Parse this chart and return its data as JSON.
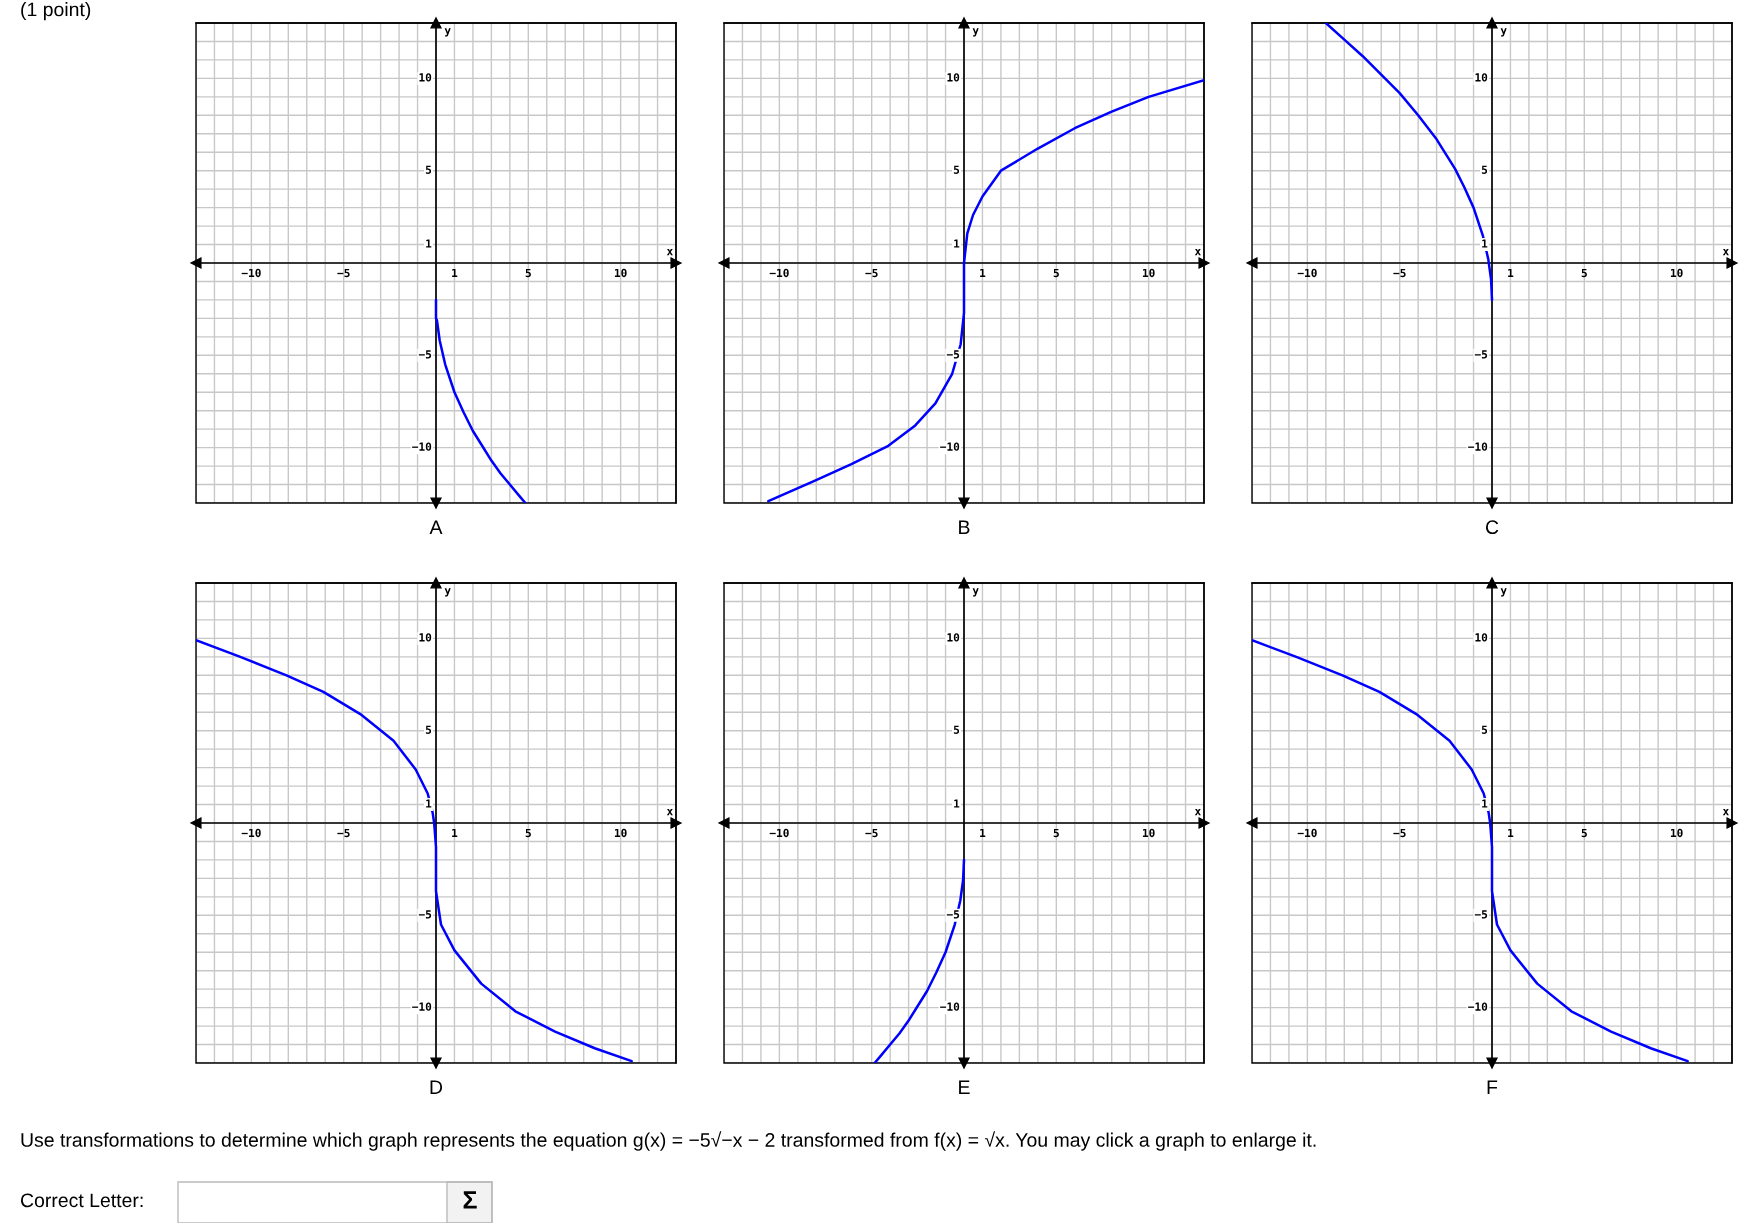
{
  "chart_data": [
    {
      "type": "line",
      "title": "A",
      "xlabel": "x",
      "ylabel": "y",
      "xlim": [
        -13,
        13
      ],
      "ylim": [
        -13,
        13
      ],
      "xticks": [
        -10,
        -5,
        1,
        5,
        10
      ],
      "yticks": [
        -10,
        -5,
        1,
        5,
        10
      ],
      "grid": true,
      "annotations": [
        "(1 point)"
      ],
      "series": [
        {
          "color": "#0000ff",
          "x": [
            0,
            0,
            0.05,
            0.2,
            0.5,
            1,
            1.5,
            2,
            2.5,
            3,
            3.5,
            4,
            4.5,
            4.84
          ],
          "values": [
            -2,
            -3,
            -3.1,
            -4.2,
            -5.5,
            -7,
            -8.1,
            -9.1,
            -9.9,
            -10.7,
            -11.4,
            -12,
            -12.6,
            -13
          ]
        }
      ]
    },
    {
      "type": "line",
      "title": "B",
      "xlabel": "x",
      "ylabel": "y",
      "xlim": [
        -13,
        13
      ],
      "ylim": [
        -13,
        13
      ],
      "xticks": [
        -10,
        -5,
        1,
        5,
        10
      ],
      "yticks": [
        -10,
        -5,
        1,
        5,
        10
      ],
      "grid": true,
      "series": [
        {
          "color": "#0000ff",
          "x": [
            -10.6,
            -8.1,
            -6.1,
            -4.1,
            -2.64,
            -1.55,
            -0.64,
            -0.18,
            0,
            0,
            0.18,
            0.49,
            1,
            2,
            4,
            6,
            8,
            10,
            13
          ],
          "values": [
            -12.9,
            -11.8,
            -10.9,
            -9.9,
            -8.8,
            -7.6,
            -6,
            -4.4,
            -2.7,
            0,
            1.6,
            2.6,
            3.6,
            5,
            6.2,
            7.3,
            8.2,
            9,
            9.9
          ]
        }
      ]
    },
    {
      "type": "line",
      "title": "C",
      "xlabel": "x",
      "ylabel": "y",
      "xlim": [
        -13,
        13
      ],
      "ylim": [
        -13,
        13
      ],
      "xticks": [
        -10,
        -5,
        1,
        5,
        10
      ],
      "yticks": [
        -10,
        -5,
        1,
        5,
        10
      ],
      "grid": true,
      "series": [
        {
          "color": "#0000ff",
          "x": [
            -9,
            -8,
            -7,
            -6,
            -5,
            -4,
            -3,
            -2,
            -1.5,
            -1,
            -0.5,
            -0.2,
            -0.05,
            0
          ],
          "values": [
            13,
            12.1,
            11.2,
            10.2,
            9.2,
            8,
            6.7,
            5.1,
            4.1,
            3,
            1.5,
            0.2,
            -0.9,
            -2
          ]
        }
      ]
    },
    {
      "type": "line",
      "title": "D",
      "xlabel": "x",
      "ylabel": "y",
      "xlim": [
        -13,
        13
      ],
      "ylim": [
        -13,
        13
      ],
      "xticks": [
        -10,
        -5,
        1,
        5,
        10
      ],
      "yticks": [
        -10,
        -5,
        1,
        5,
        10
      ],
      "grid": true,
      "series": [
        {
          "color": "#0000ff",
          "x": [
            -13,
            -10.6,
            -8.1,
            -6.1,
            -4.1,
            -2.3,
            -1.1,
            -0.45,
            -0.18,
            -0.1,
            0,
            0,
            0.27,
            1,
            2.45,
            4.3,
            6.45,
            8.6,
            10.6
          ],
          "values": [
            9.9,
            9,
            8,
            7.1,
            5.9,
            4.45,
            2.9,
            1.6,
            0.55,
            0,
            -1.3,
            -3.7,
            -5.5,
            -6.9,
            -8.7,
            -10.2,
            -11.3,
            -12.2,
            -12.9
          ]
        }
      ]
    },
    {
      "type": "line",
      "title": "E",
      "xlabel": "x",
      "ylabel": "y",
      "xlim": [
        -13,
        13
      ],
      "ylim": [
        -13,
        13
      ],
      "xticks": [
        -10,
        -5,
        1,
        5,
        10
      ],
      "yticks": [
        -10,
        -5,
        1,
        5,
        10
      ],
      "grid": true,
      "series": [
        {
          "color": "#0000ff",
          "x": [
            -4.84,
            -4.5,
            -4,
            -3.5,
            -3,
            -2.5,
            -2,
            -1.5,
            -1,
            -0.5,
            -0.2,
            -0.05,
            0
          ],
          "values": [
            -13,
            -12.6,
            -12,
            -11.4,
            -10.7,
            -9.9,
            -9.1,
            -8.1,
            -7,
            -5.5,
            -4.2,
            -3.1,
            -2
          ]
        }
      ]
    },
    {
      "type": "line",
      "title": "F",
      "xlabel": "x",
      "ylabel": "y",
      "xlim": [
        -13,
        13
      ],
      "ylim": [
        -13,
        13
      ],
      "xticks": [
        -10,
        -5,
        1,
        5,
        10
      ],
      "yticks": [
        -10,
        -5,
        1,
        5,
        10
      ],
      "grid": true,
      "annotations": [
        "Use transformations to determine which graph represents the equation g(x) = −5√−x − 2 transformed from f(x) = √x. You may click a graph to enlarge it.",
        "Correct Letter:",
        "Σ"
      ],
      "series": [
        {
          "color": "#0000ff",
          "x": [
            -13,
            -10.6,
            -8.1,
            -6.1,
            -4.1,
            -2.3,
            -1.1,
            -0.45,
            -0.18,
            -0.1,
            0,
            0,
            0.27,
            1,
            2.45,
            4.3,
            6.45,
            8.6,
            10.6
          ],
          "values": [
            9.9,
            9,
            8,
            7.1,
            5.9,
            4.45,
            2.9,
            1.6,
            0.55,
            0,
            -1.3,
            -3.7,
            -5.5,
            -6.9,
            -8.7,
            -10.2,
            -11.3,
            -12.2,
            -12.9
          ]
        }
      ]
    }
  ]
}
